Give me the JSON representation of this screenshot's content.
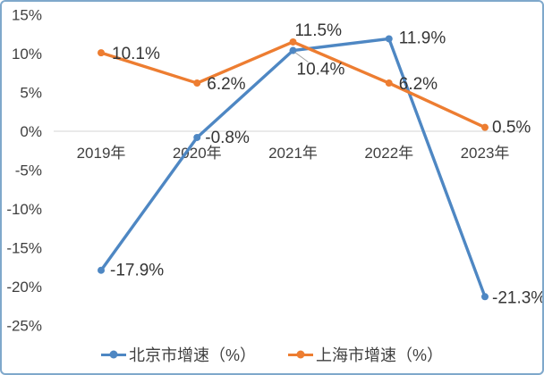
{
  "frame": {
    "border_color": "#7fa8cb",
    "background": "#ffffff"
  },
  "chart_data": {
    "type": "line",
    "title": "",
    "categories": [
      "2019年",
      "2020年",
      "2021年",
      "2022年",
      "2023年"
    ],
    "series": [
      {
        "name": "北京市增速（%）",
        "color": "#4e87c3",
        "values": [
          -17.9,
          -0.8,
          10.4,
          11.9,
          -21.3
        ],
        "data_labels": [
          "-17.9%",
          "-0.8%",
          "10.4%",
          "11.9%",
          "-21.3%"
        ]
      },
      {
        "name": "上海市增速（%）",
        "color": "#ed7d31",
        "values": [
          10.1,
          6.2,
          11.5,
          6.2,
          0.5
        ],
        "data_labels": [
          "10.1%",
          "6.2%",
          "11.5%",
          "6.2%",
          "0.5%"
        ]
      }
    ],
    "y_axis": {
      "ticks": [
        "15%",
        "10%",
        "5%",
        "0%",
        "-5%",
        "-10%",
        "-15%",
        "-20%",
        "-25%"
      ],
      "tick_values": [
        15,
        10,
        5,
        0,
        -5,
        -10,
        -15,
        -20,
        -25
      ],
      "min": -25,
      "max": 15
    },
    "grid": "zero-axis-line-only",
    "legend_position": "bottom",
    "axis_line_color": "#d6d6d6",
    "leader_line_color": "#a0a0a0",
    "text_color": "#3f3f3f",
    "label_layout": {
      "series0": [
        [
          10,
          6
        ],
        [
          9,
          6
        ],
        [
          4,
          27
        ],
        [
          11,
          5
        ],
        [
          8,
          7
        ]
      ],
      "series1": [
        [
          12,
          7
        ],
        [
          11,
          7
        ],
        [
          2,
          -7
        ],
        [
          11,
          7
        ],
        [
          8,
          6
        ]
      ]
    },
    "leader_line": {
      "series_index": 0,
      "point_index": 2
    }
  }
}
